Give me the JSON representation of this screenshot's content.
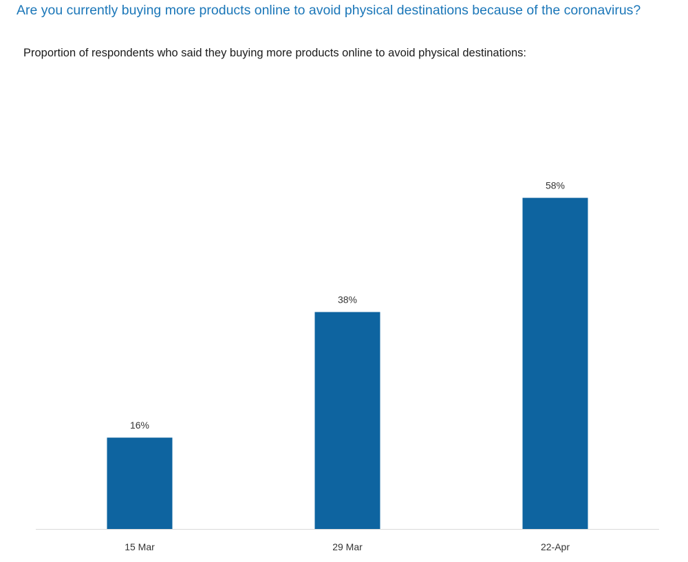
{
  "header": {
    "title": "Are you currently buying more products online to avoid physical destinations because of the coronavirus?",
    "subtitle": "Proportion of respondents who said they buying more products online to avoid physical destinations:"
  },
  "chart_data": {
    "type": "bar",
    "categories": [
      "15 Mar",
      "29 Mar",
      "22-Apr"
    ],
    "values": [
      16,
      38,
      58
    ],
    "data_labels": [
      "16%",
      "38%",
      "58%"
    ],
    "ylim": [
      0,
      100
    ],
    "grid": false,
    "legend": "none",
    "bar_color": "#0e64a0",
    "axis_color": "#d9d9d9"
  }
}
